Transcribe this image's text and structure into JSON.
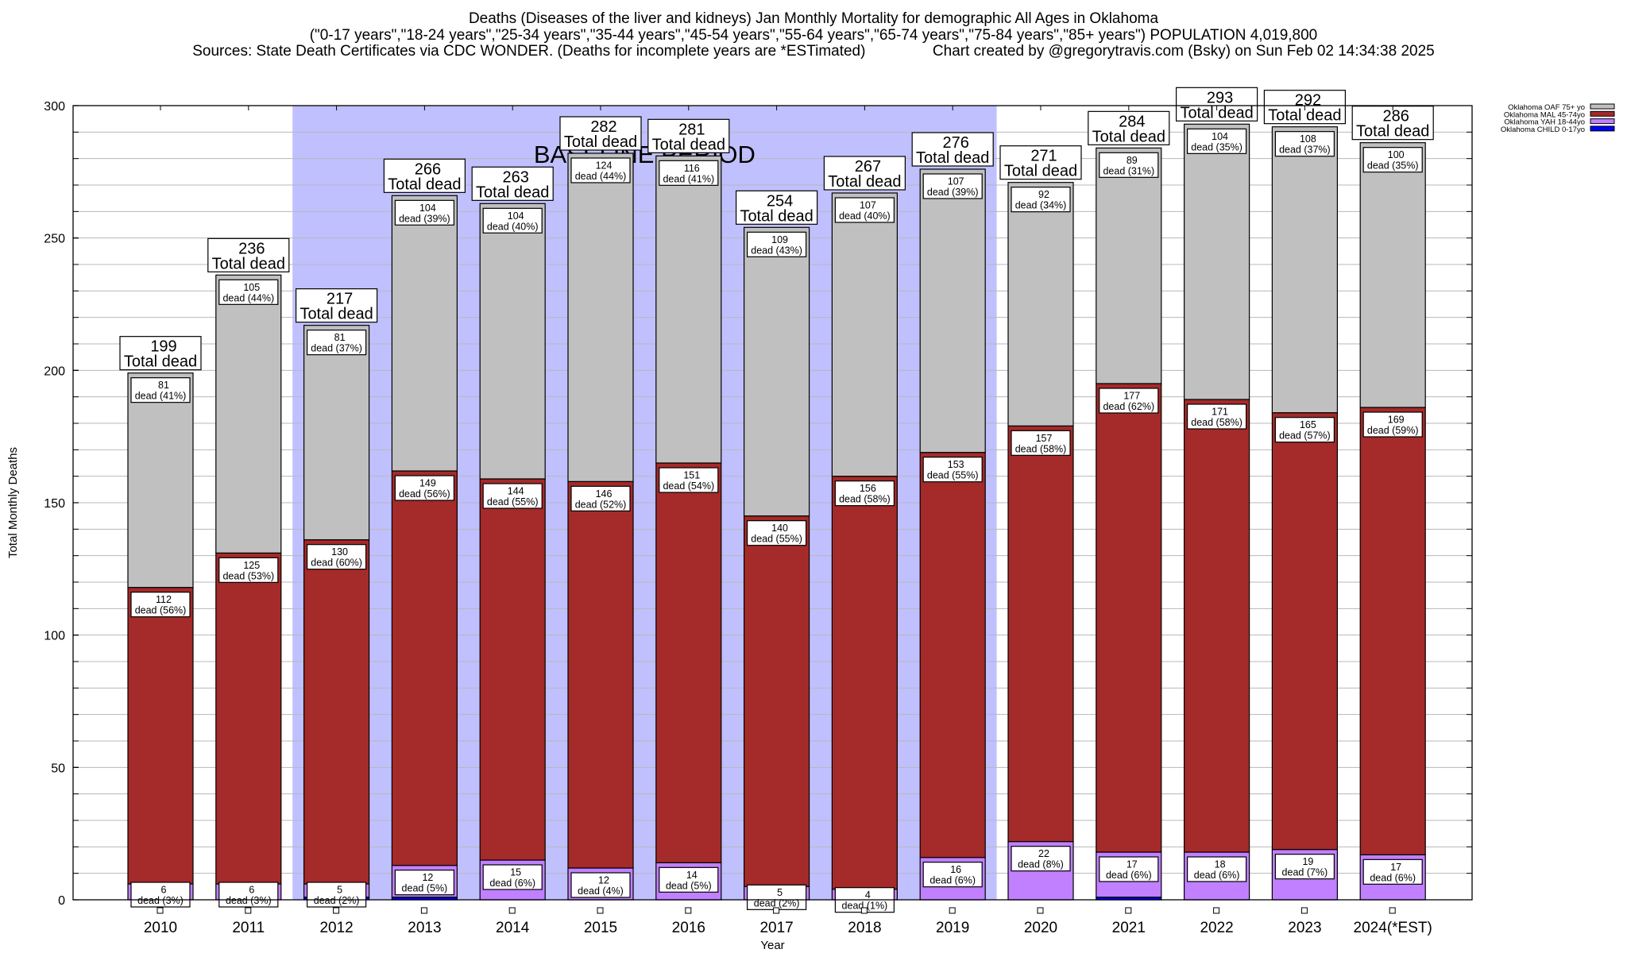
{
  "header": {
    "title_line1": "Deaths (Diseases of the liver and kidneys) Jan Monthly Mortality for demographic All Ages in Oklahoma",
    "title_line2": "(\"0-17 years\",\"18-24 years\",\"25-34 years\",\"35-44 years\",\"45-54 years\",\"55-64 years\",\"65-74 years\",\"75-84 years\",\"85+ years\") POPULATION 4,019,800",
    "title_line3": "Sources: State Death Certificates via CDC WONDER. (Deaths for incomplete years are *ESTimated)                Chart created by @gregorytravis.com (Bsky) on Sun Feb 02 14:34:38 2025"
  },
  "chart_data": {
    "type": "bar",
    "stacked": true,
    "xlabel": "Year",
    "ylabel": "Total Monthly Deaths",
    "ylim": [
      0,
      300
    ],
    "yticks": [
      0,
      50,
      100,
      150,
      200,
      250,
      300
    ],
    "grid": true,
    "legend_position": "top-right",
    "annotation": "BASELINE PERIOD",
    "baseline_period": [
      "2012",
      "2019"
    ],
    "total_label_suffix": "Total dead",
    "segment_label_prefix": "dead",
    "categories": [
      "2010",
      "2011",
      "2012",
      "2013",
      "2014",
      "2015",
      "2016",
      "2017",
      "2018",
      "2019",
      "2020",
      "2021",
      "2022",
      "2023",
      "2024(*EST)"
    ],
    "totals": [
      199,
      236,
      217,
      266,
      263,
      282,
      281,
      254,
      267,
      276,
      271,
      284,
      293,
      292,
      286
    ],
    "series": [
      {
        "name": "Oklahoma CHILD 0-17yo",
        "color": "#0000ff",
        "values": [
          0,
          0,
          1,
          1,
          0,
          0,
          0,
          0,
          0,
          0,
          0,
          1,
          0,
          0,
          0
        ],
        "labels": [
          "",
          "",
          "",
          "",
          "",
          "",
          "",
          "",
          "",
          "",
          "",
          "",
          "",
          "",
          ""
        ]
      },
      {
        "name": "Oklahoma YAH 18-44yo",
        "color": "#c080ff",
        "values": [
          6,
          6,
          5,
          12,
          15,
          12,
          14,
          5,
          4,
          16,
          22,
          17,
          18,
          19,
          17
        ],
        "pct": [
          "3%",
          "3%",
          "2%",
          "5%",
          "6%",
          "4%",
          "5%",
          "2%",
          "1%",
          "6%",
          "8%",
          "6%",
          "6%",
          "7%",
          "6%"
        ]
      },
      {
        "name": "Oklahoma MAL 45-74yo",
        "color": "#a52a2a",
        "values": [
          112,
          125,
          130,
          149,
          144,
          146,
          151,
          140,
          156,
          153,
          157,
          177,
          171,
          165,
          169
        ],
        "pct": [
          "56%",
          "53%",
          "60%",
          "56%",
          "55%",
          "52%",
          "54%",
          "55%",
          "58%",
          "55%",
          "58%",
          "62%",
          "58%",
          "57%",
          "59%"
        ]
      },
      {
        "name": "Oklahoma OAF 75+ yo",
        "color": "#c0c0c0",
        "values": [
          81,
          105,
          81,
          104,
          104,
          124,
          116,
          109,
          107,
          107,
          92,
          89,
          104,
          108,
          100
        ],
        "pct": [
          "41%",
          "44%",
          "37%",
          "39%",
          "40%",
          "44%",
          "41%",
          "43%",
          "40%",
          "39%",
          "34%",
          "31%",
          "35%",
          "37%",
          "35%"
        ]
      }
    ],
    "legend": [
      "Oklahoma OAF 75+ yo",
      "Oklahoma MAL 45-74yo",
      "Oklahoma YAH 18-44yo",
      "Oklahoma CHILD 0-17yo"
    ]
  },
  "colors": {
    "baseline_shade": "#c0c0ff",
    "grid": "#b8b8b8",
    "axis": "#000000"
  }
}
